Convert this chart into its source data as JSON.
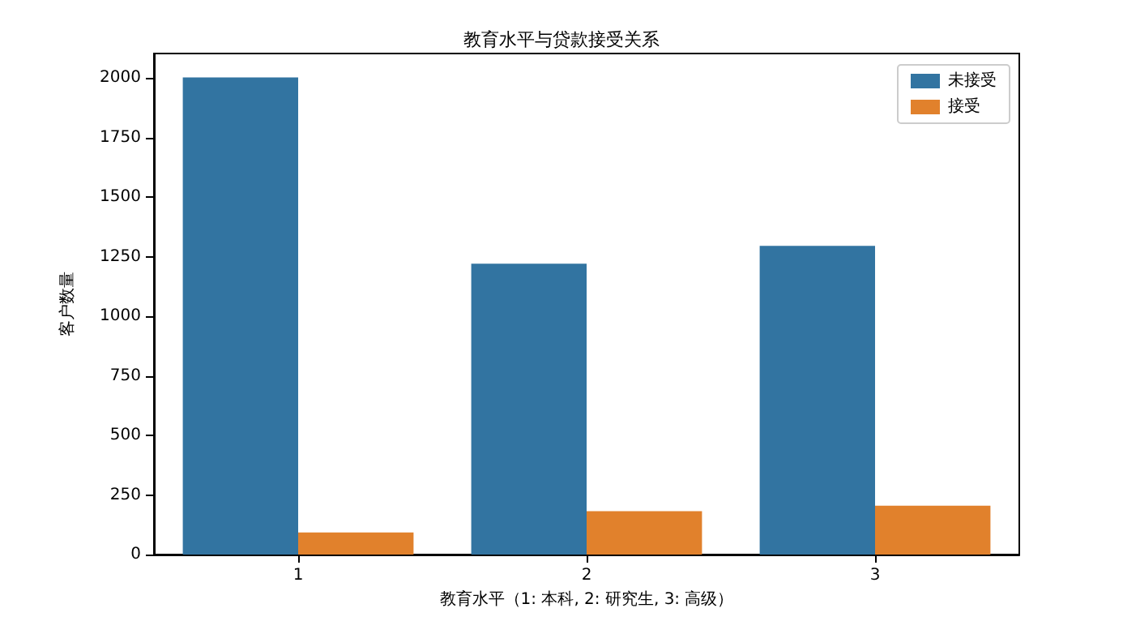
{
  "chart_data": {
    "type": "bar",
    "title": "教育水平与贷款接受关系",
    "xlabel": "教育水平（1: 本科, 2: 研究生, 3: 高级）",
    "ylabel": "客户数量",
    "categories": [
      "1",
      "2",
      "3"
    ],
    "series": [
      {
        "name": "未接受",
        "color": "#3274a1",
        "values": [
          2003,
          1221,
          1296
        ]
      },
      {
        "name": "接受",
        "color": "#e1812c",
        "values": [
          93,
          182,
          205
        ]
      }
    ],
    "ylim": [
      0,
      2103
    ],
    "yticks": [
      0,
      250,
      500,
      750,
      1000,
      1250,
      1500,
      1750,
      2000
    ],
    "grid": false,
    "legend": "top right"
  }
}
